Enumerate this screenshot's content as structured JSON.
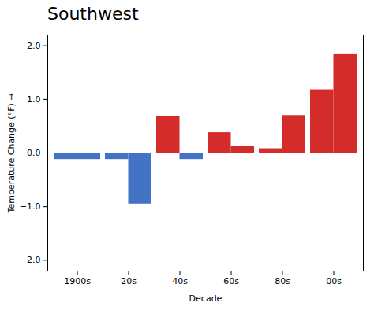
{
  "chart_data": {
    "type": "bar",
    "title": "Southwest",
    "xlabel": "Decade",
    "ylabel": "Temperature Change (°F)",
    "categories": [
      "1900s",
      "20s",
      "40s",
      "60s",
      "80s",
      "00s"
    ],
    "series": [
      {
        "values": [
          -0.12,
          -0.12,
          0.68,
          0.38,
          0.08,
          1.18
        ],
        "colors": [
          "#4472c4",
          "#4472c4",
          "#d42b2b",
          "#d42b2b",
          "#d42b2b",
          "#d42b2b"
        ]
      },
      {
        "values": [
          -0.12,
          -0.95,
          -0.12,
          0.13,
          0.7,
          1.85
        ],
        "colors": [
          "#4472c4",
          "#4472c4",
          "#4472c4",
          "#d42b2b",
          "#d42b2b",
          "#d42b2b"
        ]
      }
    ],
    "ylim": [
      -2.2,
      2.2
    ],
    "yticks": [
      -2,
      -1,
      0,
      1,
      2
    ],
    "grid": false
  }
}
